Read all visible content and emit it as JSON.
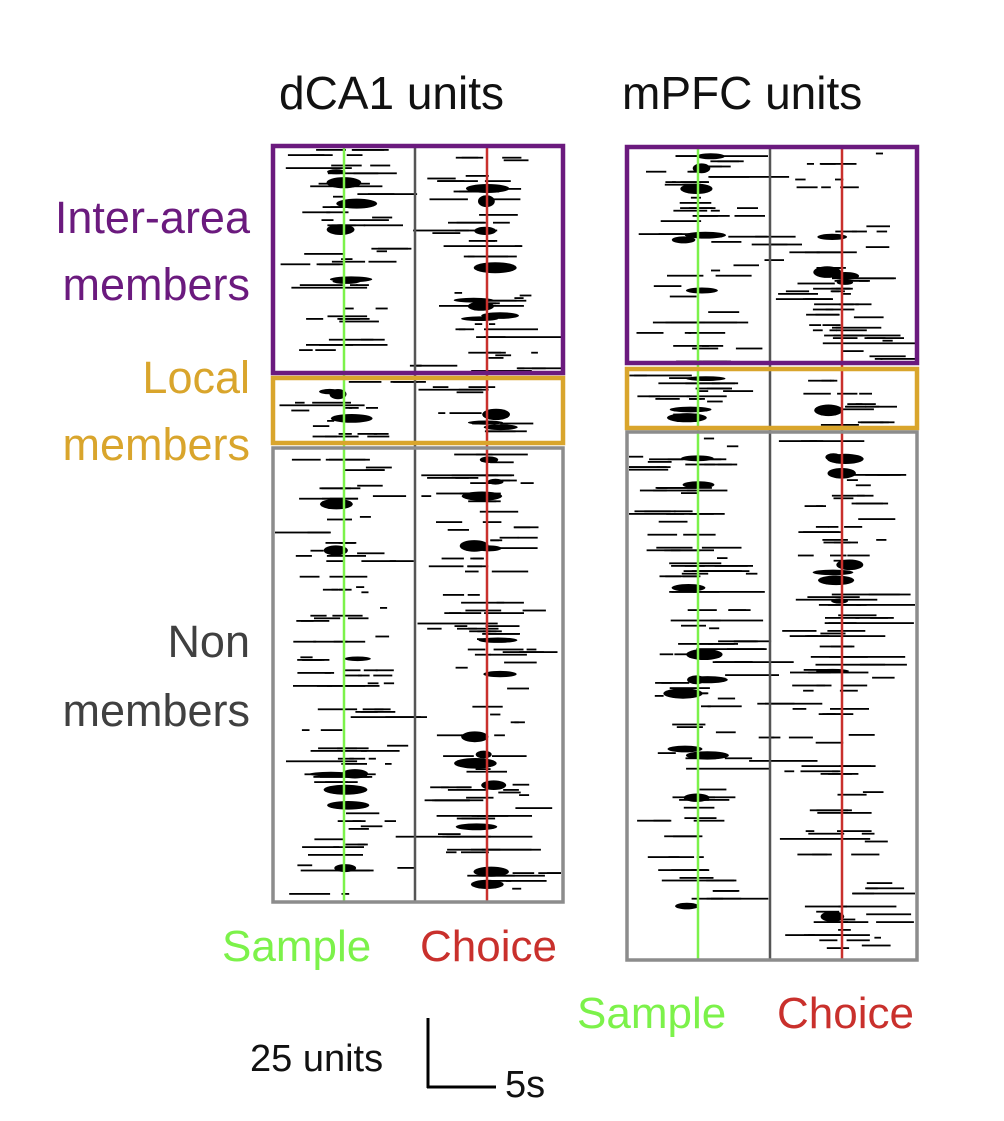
{
  "panels": [
    {
      "title": "dCA1 units",
      "sample_label": "Sample",
      "choice_label": "Choice"
    },
    {
      "title": "mPFC units",
      "sample_label": "Sample",
      "choice_label": "Choice"
    }
  ],
  "groups": {
    "inter_area": {
      "line1": "Inter-area",
      "line2": "members",
      "color": "#6b1a7e"
    },
    "local": {
      "line1": "Local",
      "line2": "members",
      "color": "#d9a52c"
    },
    "non": {
      "line1": "Non",
      "line2": "members",
      "color": "#404040"
    }
  },
  "colors": {
    "sample": "#7cf24a",
    "choice": "#c9302c",
    "non_box": "#8c8c8c",
    "raster": "#000000"
  },
  "scale_bar": {
    "units_label": "25 units",
    "time_label": "5s"
  },
  "chart_data": [
    {
      "type": "heatmap",
      "title": "dCA1 units",
      "groups": [
        "Inter-area members",
        "Local members",
        "Non members"
      ],
      "event_markers": [
        "Sample",
        "Choice"
      ],
      "scale": {
        "units": 25,
        "time_s": 5
      }
    },
    {
      "type": "heatmap",
      "title": "mPFC units",
      "groups": [
        "Inter-area members",
        "Local members",
        "Non members"
      ],
      "event_markers": [
        "Sample",
        "Choice"
      ],
      "scale": {
        "units": 25,
        "time_s": 5
      }
    }
  ]
}
